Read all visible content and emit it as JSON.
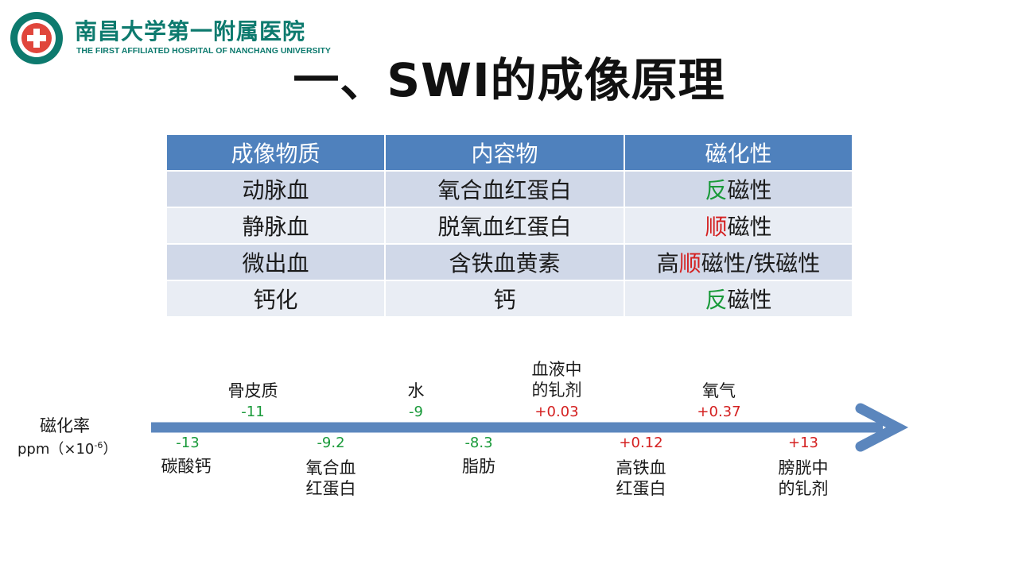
{
  "logo": {
    "name_cn": "南昌大学第一附属医院",
    "name_en": "THE FIRST AFFILIATED HOSPITAL OF NANCHANG UNIVERSITY",
    "seal_icon": "hospital-seal-icon"
  },
  "title": "一、SWI的成像原理",
  "table": {
    "headers": [
      "成像物质",
      "内容物",
      "磁化性"
    ],
    "rows": [
      {
        "substance": "动脉血",
        "content": "氧合血红蛋白",
        "mag_pre": "",
        "mag_hl": "反",
        "mag_post": "磁性",
        "hl_color": "green"
      },
      {
        "substance": "静脉血",
        "content": "脱氧血红蛋白",
        "mag_pre": "",
        "mag_hl": "顺",
        "mag_post": "磁性",
        "hl_color": "red"
      },
      {
        "substance": "微出血",
        "content": "含铁血黄素",
        "mag_pre": "高",
        "mag_hl": "顺",
        "mag_post": "磁性/铁磁性",
        "hl_color": "red"
      },
      {
        "substance": "钙化",
        "content": "钙",
        "mag_pre": "",
        "mag_hl": "反",
        "mag_post": "磁性",
        "hl_color": "green"
      }
    ]
  },
  "scale": {
    "axis_name": "磁化率",
    "axis_unit_main": "ppm（×10",
    "axis_unit_exp": "-6",
    "axis_unit_close": "）",
    "above": [
      {
        "label": "骨皮质",
        "value": "-11"
      },
      {
        "label": "水",
        "value": "-9"
      },
      {
        "label": "血液中\n的钆剂",
        "value": "+0.03"
      },
      {
        "label": "氧气",
        "value": "+0.37"
      }
    ],
    "below": [
      {
        "label": "碳酸钙",
        "value": "-13"
      },
      {
        "label": "氧合血\n红蛋白",
        "value": "-9.2"
      },
      {
        "label": "脂肪",
        "value": "-8.3"
      },
      {
        "label": "高铁血\n红蛋白",
        "value": "+0.12"
      },
      {
        "label": "膀胱中\n的钆剂",
        "value": "+13"
      }
    ],
    "colors": {
      "negative": "#1a9a3a",
      "positive": "#d42020",
      "arrow": "#5b86bd"
    }
  }
}
